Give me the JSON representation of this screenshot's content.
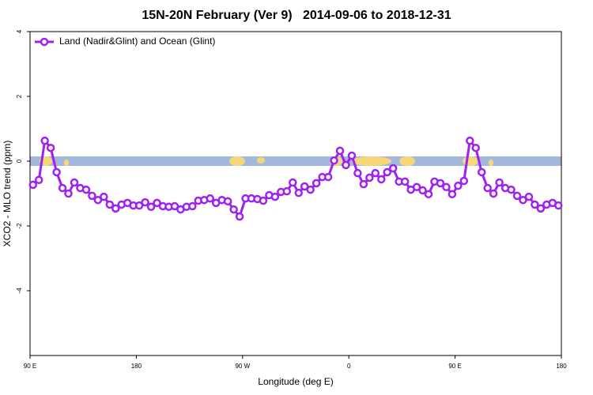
{
  "chart_data": {
    "type": "line",
    "title": "15N-20N February (Ver 9)   2014-09-06 to 2018-12-31",
    "xlabel": "Longitude (deg E)",
    "ylabel": "XCO2 - MLO trend (ppm)",
    "legend": "upper left",
    "xlim": [
      90,
      540
    ],
    "ylim": [
      -6,
      4
    ],
    "xticks": [
      {
        "value": 90,
        "label": "90 E"
      },
      180,
      {
        "value": 270,
        "label": "90 W"
      },
      {
        "value": 360,
        "label": "0"
      },
      {
        "value": 450,
        "label": "90 E"
      },
      {
        "value": 540,
        "label": "180"
      }
    ],
    "yticks": [
      -4,
      -2,
      0,
      2,
      4
    ],
    "x": [
      92.5,
      97.5,
      102.5,
      107.5,
      112.5,
      117.5,
      122.5,
      127.5,
      132.5,
      137.5,
      142.5,
      147.5,
      152.5,
      157.5,
      162.5,
      167.5,
      172.5,
      177.5,
      182.5,
      187.5,
      192.5,
      197.5,
      202.5,
      207.5,
      212.5,
      217.5,
      222.5,
      227.5,
      232.5,
      237.5,
      242.5,
      247.5,
      252.5,
      257.5,
      262.5,
      267.5,
      272.5,
      277.5,
      282.5,
      287.5,
      292.5,
      297.5,
      302.5,
      307.5,
      312.5,
      317.5,
      322.5,
      327.5,
      332.5,
      337.5,
      342.5,
      347.5,
      352.5,
      357.5,
      362.5,
      367.5,
      372.5,
      377.5,
      382.5,
      387.5,
      392.5,
      397.5,
      402.5,
      407.5,
      412.5,
      417.5,
      422.5,
      427.5,
      432.5,
      437.5,
      442.5,
      447.5,
      452.5,
      457.5,
      462.5,
      467.5,
      472.5,
      477.5,
      482.5,
      487.5,
      492.5,
      497.5,
      502.5,
      507.5,
      512.5,
      517.5,
      522.5,
      527.5,
      532.5,
      537.5
    ],
    "series": [
      {
        "name": "Land (Nadir&Glint) and Ocean (Glint)",
        "color": "#a020f0",
        "values": [
          -0.73,
          -0.58,
          0.63,
          0.41,
          -0.34,
          -0.83,
          -1.0,
          -0.66,
          -0.83,
          -0.88,
          -1.07,
          -1.2,
          -1.1,
          -1.34,
          -1.46,
          -1.34,
          -1.29,
          -1.37,
          -1.37,
          -1.27,
          -1.41,
          -1.29,
          -1.39,
          -1.41,
          -1.39,
          -1.49,
          -1.41,
          -1.39,
          -1.22,
          -1.2,
          -1.15,
          -1.29,
          -1.2,
          -1.24,
          -1.49,
          -1.71,
          -1.15,
          -1.15,
          -1.17,
          -1.22,
          -1.05,
          -1.1,
          -0.95,
          -0.93,
          -0.66,
          -0.98,
          -0.78,
          -0.88,
          -0.68,
          -0.49,
          -0.49,
          0.02,
          0.32,
          -0.12,
          0.17,
          -0.37,
          -0.71,
          -0.51,
          -0.37,
          -0.56,
          -0.34,
          -0.22,
          -0.63,
          -0.63,
          -0.88,
          -0.8,
          -0.9,
          -1.02,
          -0.63,
          -0.68,
          -0.8,
          -1.02,
          -0.76,
          -0.61,
          0.63,
          0.41,
          -0.34,
          -0.83,
          -1.0,
          -0.66,
          -0.83,
          -0.88,
          -1.07,
          -1.2,
          -1.1,
          -1.34,
          -1.46,
          -1.34,
          -1.29,
          -1.37
        ]
      }
    ]
  }
}
